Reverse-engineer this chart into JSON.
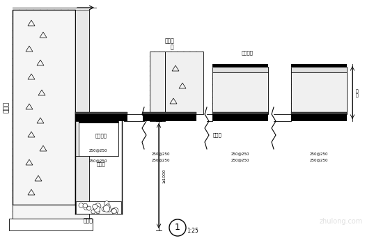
{
  "bg_color": "#ffffff",
  "fig_width": 5.6,
  "fig_height": 3.49,
  "dpi": 100,
  "labels": {
    "retaining_wall": "挡土墙",
    "drainage_frame": "集水框架",
    "drainage_pipe": "疏水管",
    "sump": "集水井",
    "drainage_trough": "能洗台",
    "slab": "板",
    "waterproof_layer": "疏水层",
    "cushion_layer": "素砼垫层",
    "dim_label": "≥1000",
    "scale_label": "1:25",
    "number": "1",
    "dim_text": "250@250"
  }
}
